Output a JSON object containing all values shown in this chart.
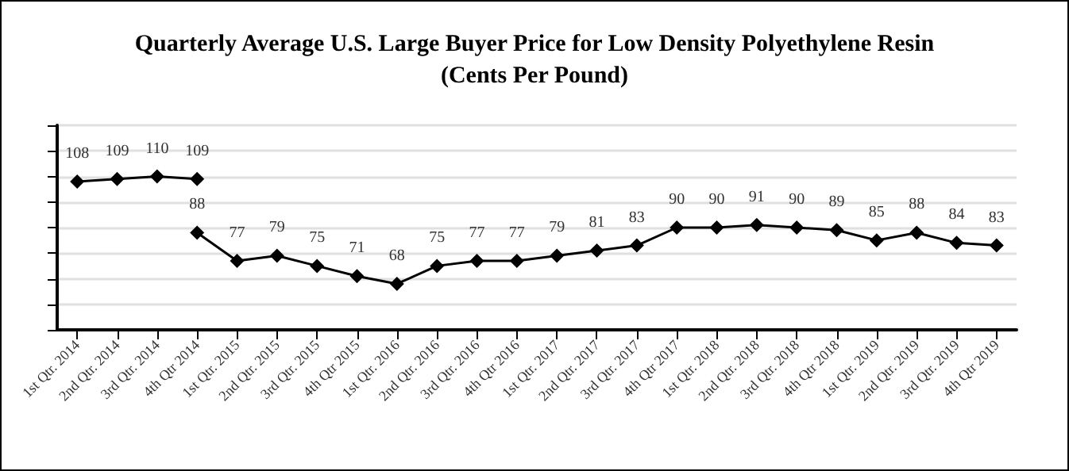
{
  "chart_data": {
    "type": "line",
    "title": "Quarterly Average U.S. Large Buyer Price for Low Density Polyethylene Resin\n(Cents Per Pound)",
    "categories": [
      "1st Qtr. 2014",
      "2nd Qtr. 2014",
      "3rd Qtr. 2014",
      "4th Qtr 2014",
      "1st Qtr. 2015",
      "2nd Qtr. 2015",
      "3rd Qtr. 2015",
      "4th Qtr 2015",
      "1st Qtr. 2016",
      "2nd Qtr. 2016",
      "3rd Qtr. 2016",
      "4th Qtr 2016",
      "1st Qtr. 2017",
      "2nd Qtr. 2017",
      "3rd Qtr. 2017",
      "4th Qtr 2017",
      "1st Qtr. 2018",
      "2nd Qtr. 2018",
      "3rd Qtr. 2018",
      "4th Qtr 2018",
      "1st Qtr. 2019",
      "2nd Qtr. 2019",
      "3rd Qtr. 2019",
      "4th Qtr 2019"
    ],
    "series": [
      {
        "color": "#000000",
        "values": [
          108,
          109,
          110,
          109,
          null,
          null,
          null,
          null,
          null,
          null,
          null,
          null,
          null,
          null,
          null,
          null,
          null,
          null,
          null,
          null,
          null,
          null,
          null,
          null
        ]
      },
      {
        "color": "#000000",
        "values": [
          null,
          null,
          null,
          88,
          77,
          79,
          75,
          71,
          68,
          75,
          77,
          77,
          79,
          81,
          83,
          90,
          90,
          91,
          90,
          89,
          85,
          88,
          84,
          83
        ]
      }
    ],
    "ylim": [
      50,
      130
    ],
    "yticks": [
      {
        "value": 50,
        "label": null
      },
      {
        "value": 60,
        "label": null
      },
      {
        "value": 70,
        "label": null
      },
      {
        "value": 80,
        "label": null
      },
      {
        "value": 90,
        "label": null
      },
      {
        "value": 100,
        "label": null
      },
      {
        "value": 110,
        "label": null
      },
      {
        "value": 120,
        "label": null
      },
      {
        "value": 130,
        "label": null
      }
    ],
    "grid": "y",
    "marker": "diamond",
    "line_style": "solid",
    "data_labels": true
  }
}
